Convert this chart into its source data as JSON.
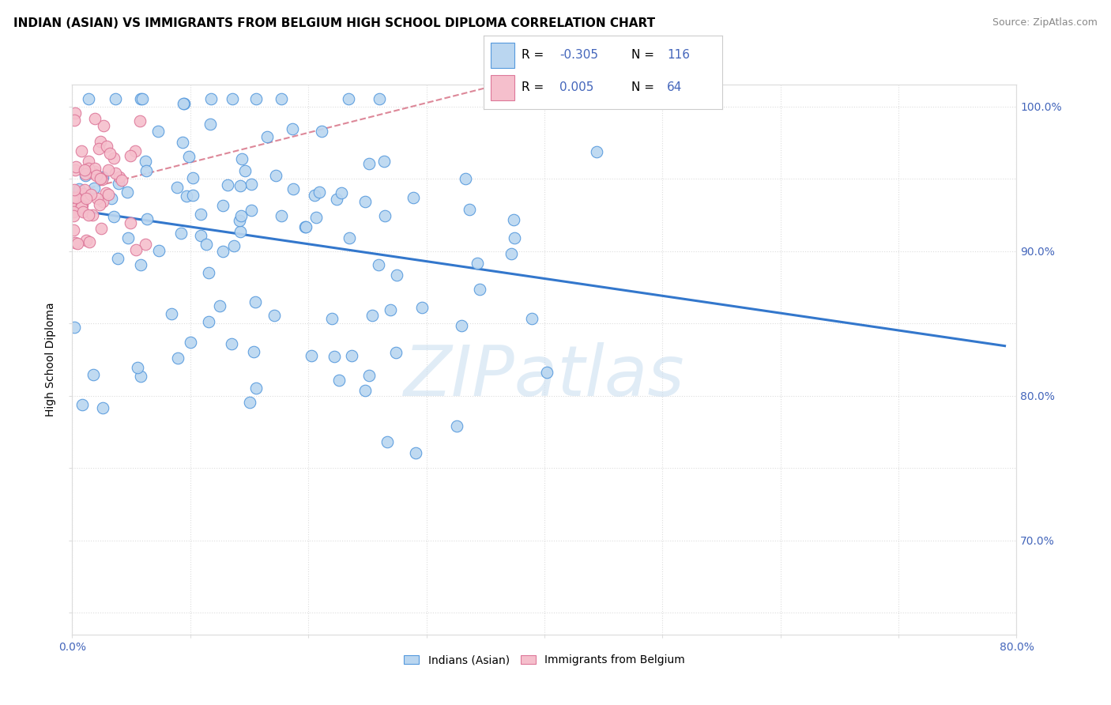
{
  "title": "INDIAN (ASIAN) VS IMMIGRANTS FROM BELGIUM HIGH SCHOOL DIPLOMA CORRELATION CHART",
  "source": "Source: ZipAtlas.com",
  "ylabel": "High School Diploma",
  "xlim": [
    0.0,
    0.8
  ],
  "ylim": [
    0.635,
    1.015
  ],
  "yticks": [
    0.65,
    0.7,
    0.75,
    0.8,
    0.85,
    0.9,
    0.95,
    1.0
  ],
  "ytick_labels": [
    "",
    "70.0%",
    "",
    "80.0%",
    "",
    "90.0%",
    "",
    "100.0%"
  ],
  "xticks": [
    0.0,
    0.1,
    0.2,
    0.3,
    0.4,
    0.5,
    0.6,
    0.7,
    0.8
  ],
  "xtick_labels": [
    "0.0%",
    "",
    "",
    "",
    "",
    "",
    "",
    "",
    "80.0%"
  ],
  "blue_fill": "#bad6f0",
  "blue_edge": "#5599dd",
  "pink_fill": "#f5bfcc",
  "pink_edge": "#dd7799",
  "blue_line_color": "#3377cc",
  "pink_line_color": "#dd8899",
  "background_color": "#ffffff",
  "watermark": "ZIPatlas",
  "blue_R": -0.305,
  "pink_R": 0.005,
  "blue_N": 116,
  "pink_N": 64,
  "title_fontsize": 11,
  "axis_label_fontsize": 10,
  "tick_fontsize": 10,
  "tick_color": "#4466bb",
  "grid_color": "#dddddd"
}
